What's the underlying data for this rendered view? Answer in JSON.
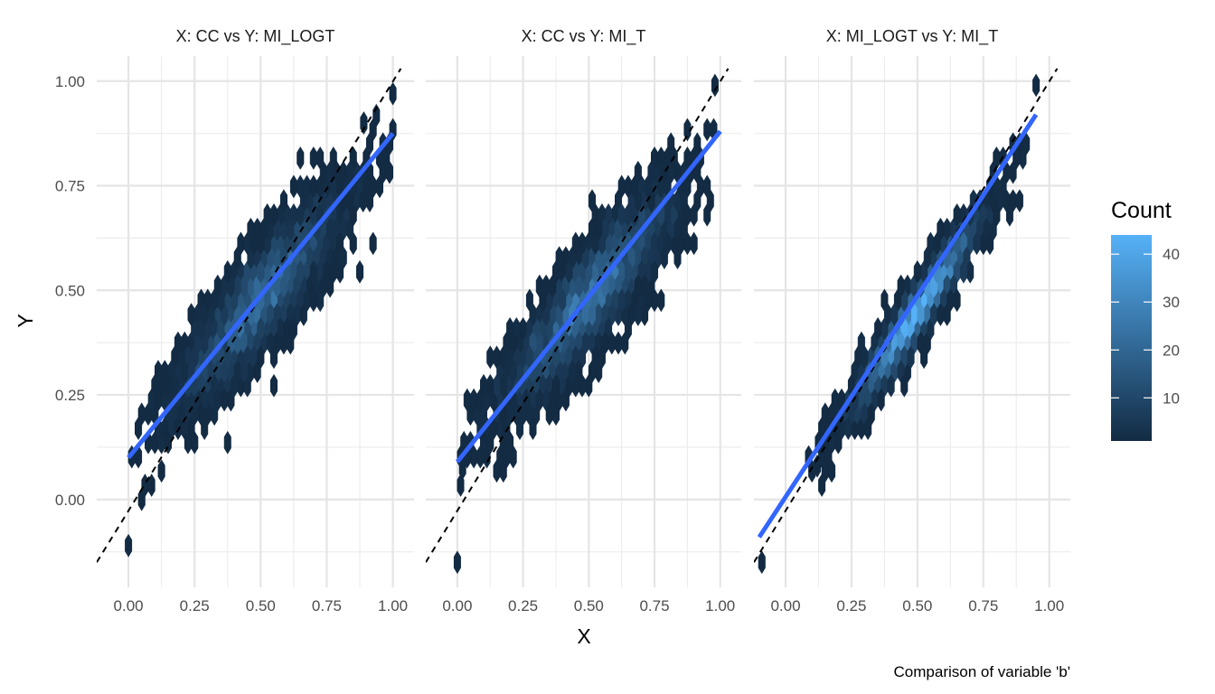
{
  "chart_data": {
    "type": "heatmap",
    "subtype": "hexbin",
    "xlabel": "X",
    "ylabel": "Y",
    "caption": "Comparison of variable 'b'",
    "xlim": [
      -0.12,
      1.08
    ],
    "ylim": [
      -0.21,
      1.06
    ],
    "x_ticks": [
      0,
      0.25,
      0.5,
      0.75,
      1.0
    ],
    "x_tick_labels": [
      "0.00",
      "0.25",
      "0.50",
      "0.75",
      "1.00"
    ],
    "y_ticks": [
      0,
      0.25,
      0.5,
      0.75,
      1.0
    ],
    "y_tick_labels": [
      "0.00",
      "0.25",
      "0.50",
      "0.75",
      "1.00"
    ],
    "grid": true,
    "legend": {
      "title": "Count",
      "position": "right",
      "min": 1,
      "max": 44,
      "ticks": [
        10,
        20,
        30,
        40
      ],
      "tick_labels": [
        "10",
        "20",
        "30",
        "40"
      ],
      "color_low": "#132B43",
      "color_high": "#56B1F7"
    },
    "colors": {
      "fit_line": "#3366FF",
      "reference_line": "#000000",
      "grid": "#EBEBEB"
    },
    "panels": [
      {
        "title": "X: CC vs Y: MI_LOGT",
        "fit": {
          "x": [
            0.0,
            1.0
          ],
          "y": [
            0.1,
            0.875
          ]
        },
        "reference": {
          "x": [
            -0.12,
            1.03
          ],
          "y": [
            -0.15,
            1.03
          ]
        },
        "point_cloud": {
          "center": [
            0.5,
            0.48
          ],
          "sd_along": 0.2,
          "sd_across": 0.05,
          "slope": 0.775,
          "n": 500,
          "peak_count": 25
        },
        "outliers": [
          {
            "x": 0.0,
            "y": -0.11
          },
          {
            "x": 1.0,
            "y": 0.97
          },
          {
            "x": 0.89,
            "y": 0.9
          }
        ]
      },
      {
        "title": "X: CC vs Y: MI_T",
        "fit": {
          "x": [
            0.0,
            1.0
          ],
          "y": [
            0.09,
            0.88
          ]
        },
        "reference": {
          "x": [
            -0.12,
            1.03
          ],
          "y": [
            -0.15,
            1.03
          ]
        },
        "point_cloud": {
          "center": [
            0.5,
            0.48
          ],
          "sd_along": 0.2,
          "sd_across": 0.05,
          "slope": 0.79,
          "n": 500,
          "peak_count": 28
        },
        "outliers": [
          {
            "x": 0.0,
            "y": -0.15
          },
          {
            "x": 0.02,
            "y": 0.075
          },
          {
            "x": 0.98,
            "y": 0.99
          }
        ]
      },
      {
        "title": "X: MI_LOGT vs Y: MI_T",
        "fit": {
          "x": [
            -0.1,
            0.95
          ],
          "y": [
            -0.09,
            0.92
          ]
        },
        "reference": {
          "x": [
            -0.12,
            1.03
          ],
          "y": [
            -0.15,
            1.03
          ]
        },
        "point_cloud": {
          "center": [
            0.5,
            0.45
          ],
          "sd_along": 0.17,
          "sd_across": 0.025,
          "slope": 0.96,
          "n": 500,
          "peak_count": 44
        },
        "outliers": [
          {
            "x": -0.09,
            "y": -0.15
          },
          {
            "x": 0.95,
            "y": 0.99
          },
          {
            "x": 0.12,
            "y": 0.08
          }
        ]
      }
    ]
  }
}
